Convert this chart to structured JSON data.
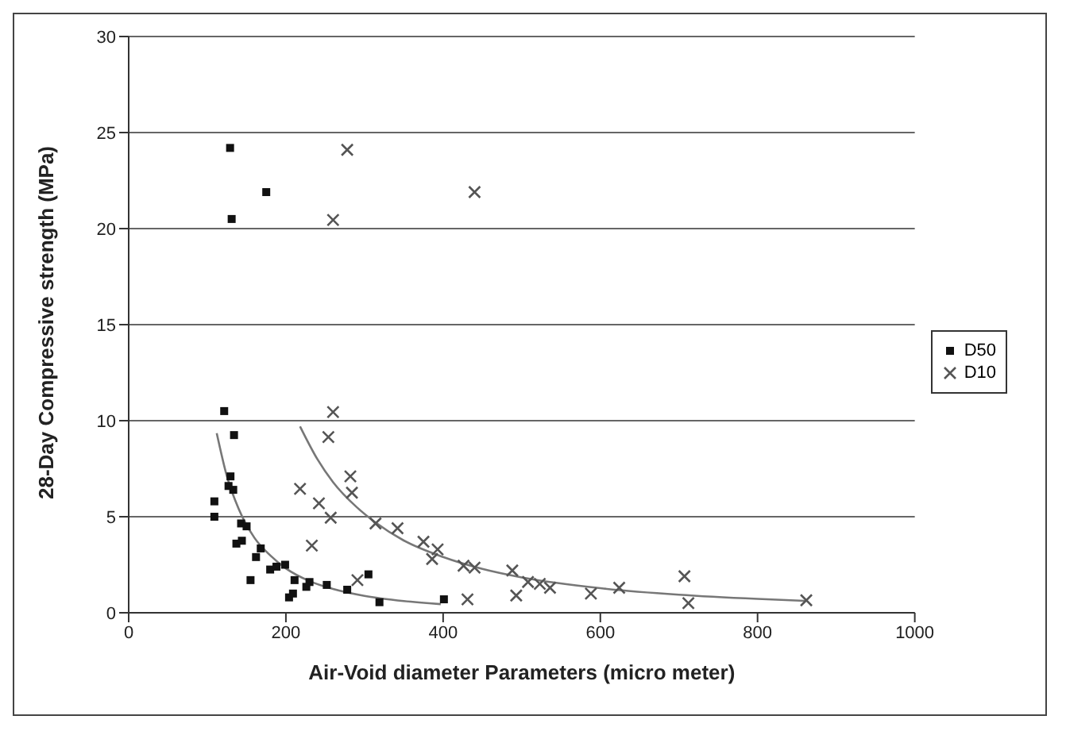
{
  "chart_data": {
    "type": "scatter",
    "xlabel": "Air-Void diameter Parameters (micro meter)",
    "ylabel": "28-Day Compressive strength (MPa)",
    "xlim": [
      0,
      1000
    ],
    "xticks": [
      0,
      200,
      400,
      600,
      800,
      1000
    ],
    "ylim": [
      0,
      30
    ],
    "yticks": [
      0,
      5,
      10,
      15,
      20,
      25,
      30
    ],
    "grid": "y",
    "legend": "right",
    "series": [
      {
        "name": "D50",
        "color": "#111111",
        "marker": "square",
        "x": [
          129,
          175,
          131,
          121.5,
          134,
          129.5,
          127,
          133,
          109,
          109,
          143,
          150,
          137,
          144,
          168,
          162,
          155,
          180,
          188,
          199,
          211,
          204,
          209,
          226,
          230,
          252,
          278,
          319,
          401,
          305
        ],
        "values": [
          24.2,
          21.9,
          20.5,
          10.5,
          9.25,
          7.1,
          6.6,
          6.4,
          5.8,
          5.0,
          4.65,
          4.5,
          3.6,
          3.75,
          3.35,
          2.9,
          1.7,
          2.25,
          2.4,
          2.5,
          1.7,
          0.8,
          1.0,
          1.35,
          1.6,
          1.45,
          1.2,
          0.55,
          0.7,
          2.0
        ]
      },
      {
        "name": "D10",
        "color": "#555555",
        "marker": "cross",
        "x": [
          278,
          440,
          260,
          260,
          254,
          282,
          284,
          218,
          242,
          257,
          233,
          291,
          314,
          342,
          375,
          393,
          386,
          426,
          440,
          431,
          488,
          493,
          508,
          523,
          536,
          588,
          624,
          707,
          712,
          862
        ],
        "values": [
          24.1,
          21.9,
          20.45,
          10.45,
          9.15,
          7.1,
          6.25,
          6.45,
          5.7,
          4.95,
          3.5,
          1.7,
          4.65,
          4.4,
          3.7,
          3.3,
          2.8,
          2.45,
          2.35,
          0.7,
          2.2,
          0.9,
          1.6,
          1.5,
          1.3,
          1.0,
          1.3,
          1.9,
          0.5,
          0.65
        ]
      },
      {
        "type": "line",
        "color": "#777777",
        "marker": "none",
        "x": [
          112,
          125,
          140,
          160,
          180,
          200,
          230,
          260,
          300,
          350,
          397
        ],
        "values": [
          9.35,
          7.1,
          5.4,
          3.9,
          2.99,
          2.31,
          1.65,
          1.24,
          0.88,
          0.61,
          0.45
        ]
      },
      {
        "type": "line",
        "color": "#777777",
        "marker": "none",
        "x": [
          218,
          240,
          260,
          290,
          314,
          350,
          400,
          450,
          500,
          600,
          700,
          800,
          860
        ],
        "values": [
          9.7,
          8.0,
          6.8,
          5.5,
          4.7,
          3.76,
          2.9,
          2.28,
          1.84,
          1.28,
          0.94,
          0.72,
          0.62
        ]
      }
    ]
  }
}
